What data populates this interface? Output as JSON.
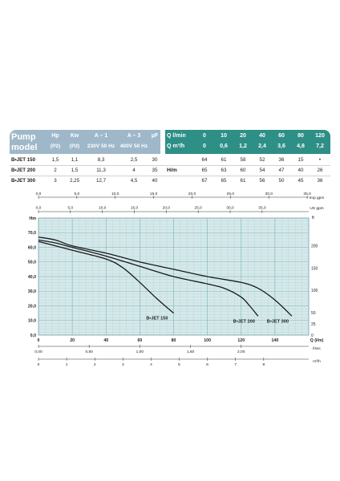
{
  "table": {
    "model_header": [
      "Pump",
      "model"
    ],
    "columns": [
      {
        "top": "Hp",
        "bottom": "(P2)"
      },
      {
        "top": "Kw",
        "bottom": "(P2)"
      },
      {
        "top": "A – 1",
        "bottom": "230V 50 Hz"
      },
      {
        "top": "A – 3",
        "bottom": "400V 50 Hz"
      },
      {
        "top": "µF",
        "bottom": ""
      }
    ],
    "rows": [
      {
        "model": "B•JET 150",
        "values": [
          "1,5",
          "1,1",
          "8,3",
          "2,5",
          "30"
        ]
      },
      {
        "model": "B•JET 200",
        "values": [
          "2",
          "1,5",
          "11,3",
          "4",
          "35"
        ]
      },
      {
        "model": "B•JET 300",
        "values": [
          "3",
          "2,25",
          "12,7",
          "4,5",
          "40"
        ]
      }
    ],
    "flow_labels": [
      "Q l/min",
      "Q m³/h"
    ],
    "flow_lmin": [
      "0",
      "10",
      "20",
      "40",
      "60",
      "80",
      "120"
    ],
    "flow_m3h": [
      "0",
      "0,6",
      "1,2",
      "2,4",
      "3,6",
      "4,8",
      "7,2"
    ],
    "head_label": "H/m",
    "head_values": [
      [
        "64",
        "61",
        "58",
        "52",
        "36",
        "15",
        "•"
      ],
      [
        "65",
        "63",
        "60",
        "54",
        "47",
        "40",
        "26"
      ],
      [
        "67",
        "65",
        "61",
        "56",
        "50",
        "45",
        "36"
      ]
    ]
  },
  "colors": {
    "header_bg": "#9fb8c9",
    "flow_header_bg": "#2e8f86",
    "plot_bg": "#d6e9ea",
    "grid_minor": "#a9cfd1",
    "grid_major": "#7fb6b9",
    "curve": "#1a1a1a"
  },
  "chart_data": {
    "type": "line",
    "xlabel": "Q (l/m)",
    "ylabel": "Hm",
    "xlim": [
      0,
      160
    ],
    "ylim": [
      0,
      80
    ],
    "xticks": [
      "0",
      "20",
      "40",
      "60",
      "80",
      "100",
      "120",
      "140"
    ],
    "yticks": [
      "0,0",
      "10,0",
      "20,0",
      "30,0",
      "40,0",
      "50,0",
      "60,0",
      "70,0"
    ],
    "y2_label": "ft",
    "y2_ticks": [
      "0",
      "50",
      "100",
      "150",
      "200"
    ],
    "y2_extra": [
      "25"
    ],
    "top_axis": {
      "label": "Imp gpm",
      "ticks": [
        "0,0",
        "5,0",
        "10,0",
        "15,0",
        "20,0",
        "25,0",
        "30,0",
        "35,0"
      ],
      "max": 35.2
    },
    "us_axis": {
      "label": "US gpm",
      "ticks": [
        "0,0",
        "5,0",
        "10,0",
        "15,0",
        "20,0",
        "25,0",
        "30,0",
        "35,0"
      ],
      "max": 42.3
    },
    "bottom_axis1": {
      "label": "l/sec",
      "ticks": [
        "0,00",
        "0,50",
        "1,00",
        "1,50",
        "2,00"
      ],
      "max": 2.667
    },
    "bottom_axis2": {
      "label": "m³/h",
      "ticks": [
        "0",
        "1",
        "2",
        "3",
        "4",
        "5",
        "6",
        "7",
        "8"
      ],
      "max": 9.6
    },
    "series": [
      {
        "name": "B•JET 150",
        "points": [
          [
            0,
            64
          ],
          [
            10,
            61
          ],
          [
            20,
            58
          ],
          [
            40,
            52
          ],
          [
            50,
            46
          ],
          [
            60,
            36
          ],
          [
            70,
            25
          ],
          [
            80,
            15
          ]
        ]
      },
      {
        "name": "B•JET 200",
        "points": [
          [
            0,
            65
          ],
          [
            10,
            63
          ],
          [
            20,
            60
          ],
          [
            40,
            54
          ],
          [
            60,
            47
          ],
          [
            80,
            40
          ],
          [
            100,
            35
          ],
          [
            110,
            32
          ],
          [
            120,
            26
          ],
          [
            125,
            20
          ],
          [
            130,
            13
          ]
        ]
      },
      {
        "name": "B•JET 300",
        "points": [
          [
            0,
            67
          ],
          [
            10,
            65
          ],
          [
            20,
            61
          ],
          [
            40,
            56
          ],
          [
            60,
            50
          ],
          [
            80,
            45
          ],
          [
            100,
            40
          ],
          [
            120,
            36
          ],
          [
            130,
            32
          ],
          [
            140,
            24
          ],
          [
            150,
            13
          ]
        ]
      }
    ]
  }
}
